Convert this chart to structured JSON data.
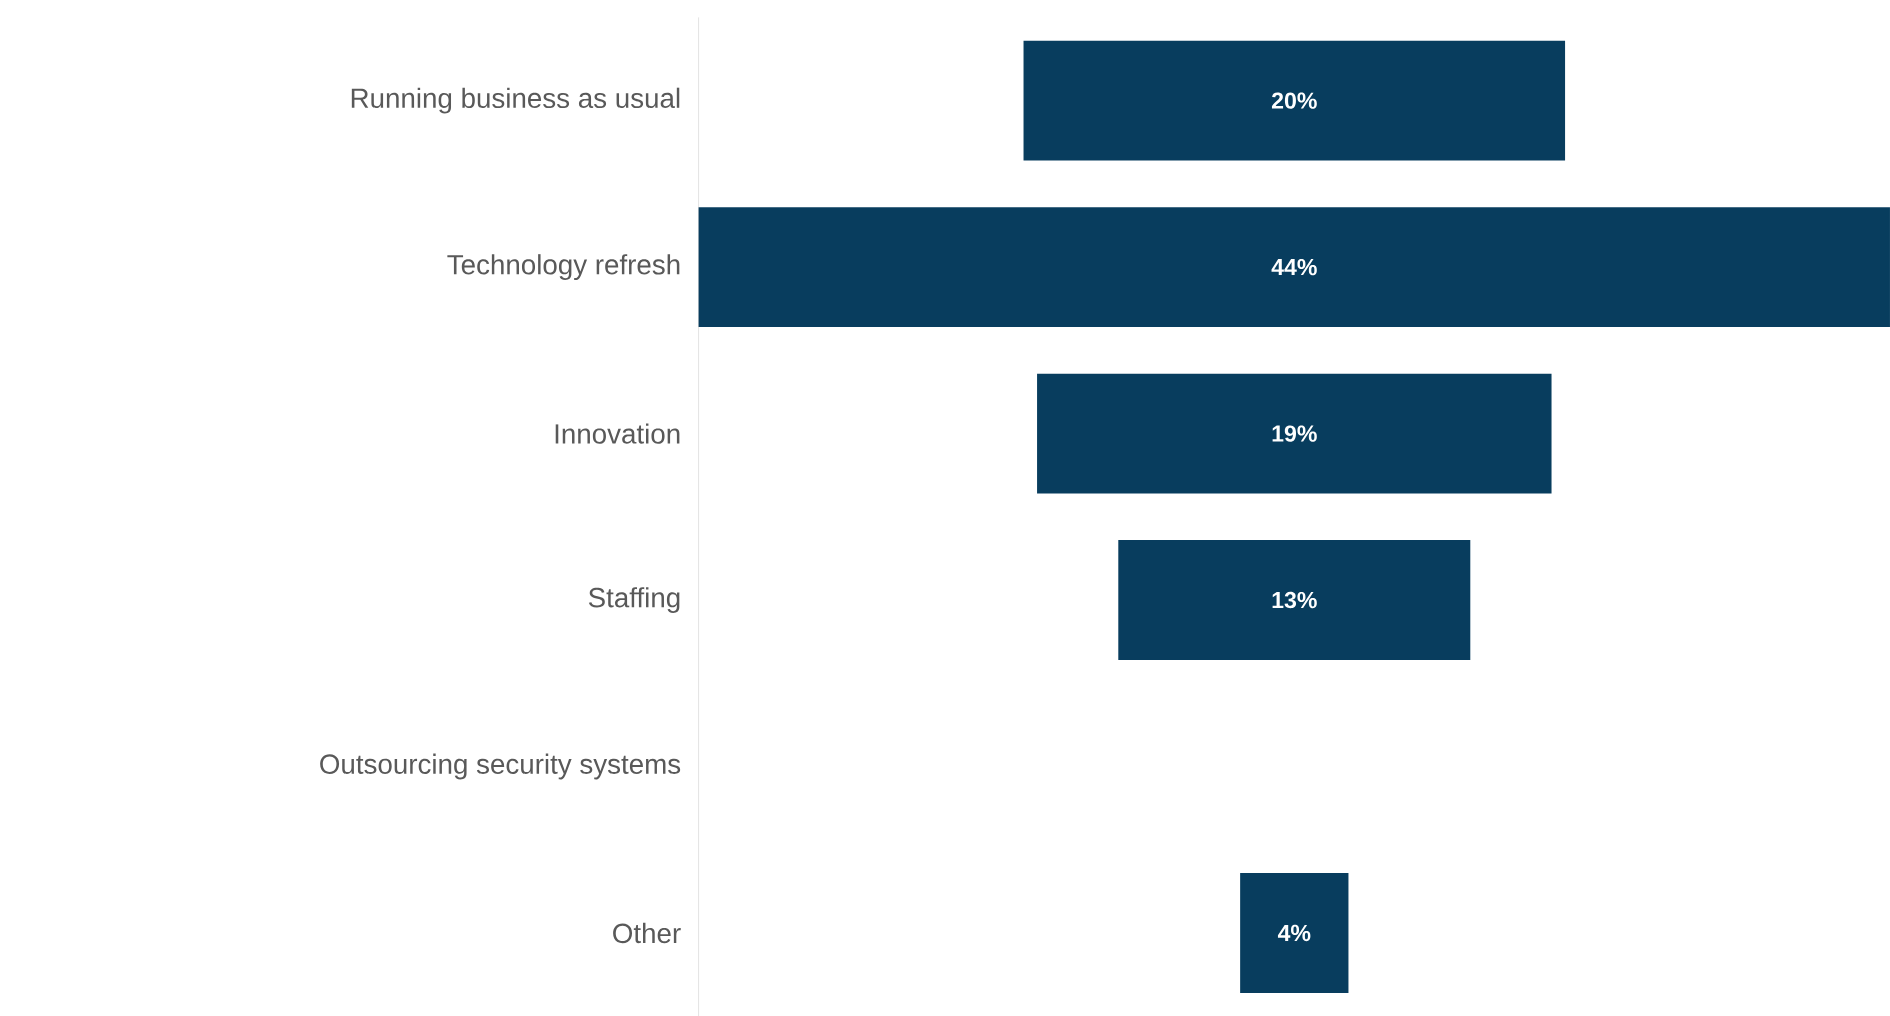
{
  "chart_data": {
    "type": "other",
    "categories": [
      "Running business as usual",
      "Technology refresh",
      "Innovation",
      "Staffing",
      "Outsourcing security systems",
      "Other"
    ],
    "values": [
      20,
      44,
      19,
      13,
      null,
      4
    ],
    "value_labels": [
      "20%",
      "44%",
      "19%",
      "13%",
      null,
      "4%"
    ],
    "color": "#083d5e"
  }
}
